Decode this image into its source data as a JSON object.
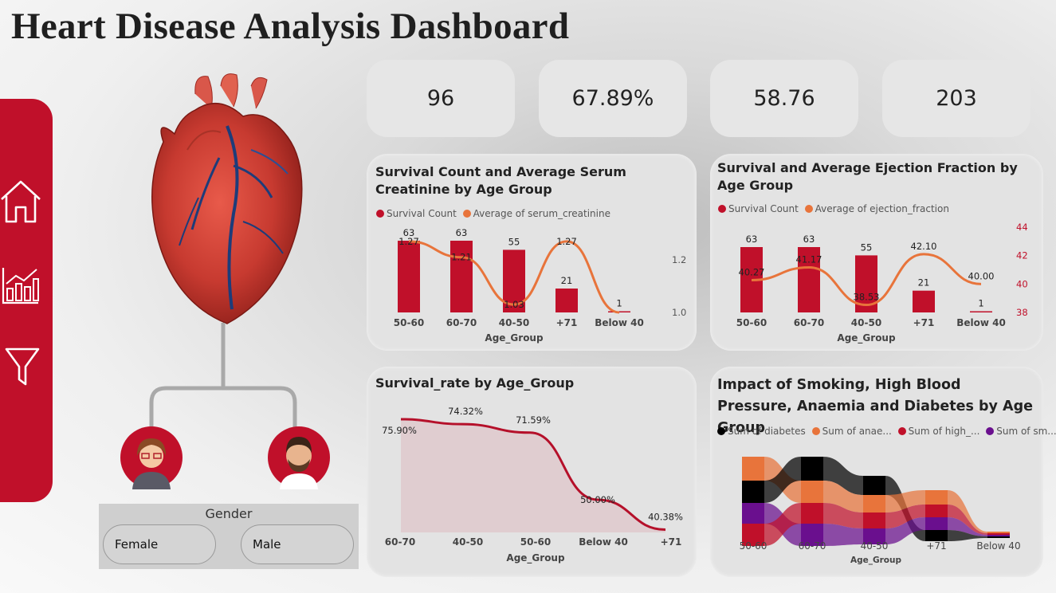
{
  "header": {
    "title": "Heart Disease Analysis Dashboard"
  },
  "sidebar": {
    "items": [
      {
        "name": "home",
        "icon": "home-icon"
      },
      {
        "name": "analytics",
        "icon": "bar-chart-icon"
      },
      {
        "name": "filter",
        "icon": "filter-icon"
      }
    ]
  },
  "kpis": [
    "96",
    "67.89%",
    "58.76",
    "203"
  ],
  "gender": {
    "label": "Gender",
    "options": [
      "Female",
      "Male"
    ]
  },
  "colors": {
    "crimson": "#c0102a",
    "orange": "#e8743b",
    "black": "#000000",
    "purple": "#6a0f8e"
  },
  "chart_data": [
    {
      "type": "bar",
      "title": "Survival Count and Average Serum Creatinine by Age Group",
      "legend": [
        "Survival Count",
        "Average of serum_creatinine"
      ],
      "xlabel": "Age_Group",
      "categories": [
        "50-60",
        "60-70",
        "40-50",
        "+71",
        "Below 40"
      ],
      "series": [
        {
          "name": "Survival Count",
          "type": "bar",
          "values": [
            63,
            63,
            55,
            21,
            1
          ]
        },
        {
          "name": "Average of serum_creatinine",
          "type": "line",
          "values": [
            1.27,
            1.21,
            1.03,
            1.27,
            1.0
          ]
        }
      ],
      "point_labels": [
        "1.27",
        "1.21",
        "1.03",
        "1.27",
        ""
      ],
      "y2_ticks": [
        "1.2",
        "1.0"
      ]
    },
    {
      "type": "bar",
      "title": "Survival and Average Ejection Fraction by Age Group",
      "legend": [
        "Survival Count",
        "Average of ejection_fraction"
      ],
      "xlabel": "Age_Group",
      "categories": [
        "50-60",
        "60-70",
        "40-50",
        "+71",
        "Below 40"
      ],
      "series": [
        {
          "name": "Survival Count",
          "type": "bar",
          "values": [
            63,
            63,
            55,
            21,
            1
          ]
        },
        {
          "name": "Average of ejection_fraction",
          "type": "line",
          "values": [
            40.27,
            41.17,
            38.53,
            42.1,
            40.0
          ]
        }
      ],
      "point_labels": [
        "40.27",
        "41.17",
        "38.53",
        "42.10",
        "40.00"
      ],
      "y2_ticks": [
        "44",
        "42",
        "40",
        "38"
      ]
    },
    {
      "type": "area",
      "title": "Survival_rate by Age_Group",
      "xlabel": "Age_Group",
      "categories": [
        "60-70",
        "40-50",
        "50-60",
        "Below 40",
        "+71"
      ],
      "values": [
        75.9,
        74.32,
        71.59,
        50.0,
        40.38
      ],
      "point_labels": [
        "75.90%",
        "74.32%",
        "71.59%",
        "50.00%",
        "40.38%"
      ]
    },
    {
      "type": "area",
      "title": "Impact of Smoking, High Blood Pressure, Anaemia and Diabetes by Age Group",
      "legend": [
        "Sum of diabetes",
        "Sum of anae...",
        "Sum of high_...",
        "Sum of sm..."
      ],
      "xlabel": "Age_Group",
      "categories": [
        "50-60",
        "60-70",
        "40-50",
        "+71",
        "Below 40"
      ]
    }
  ]
}
